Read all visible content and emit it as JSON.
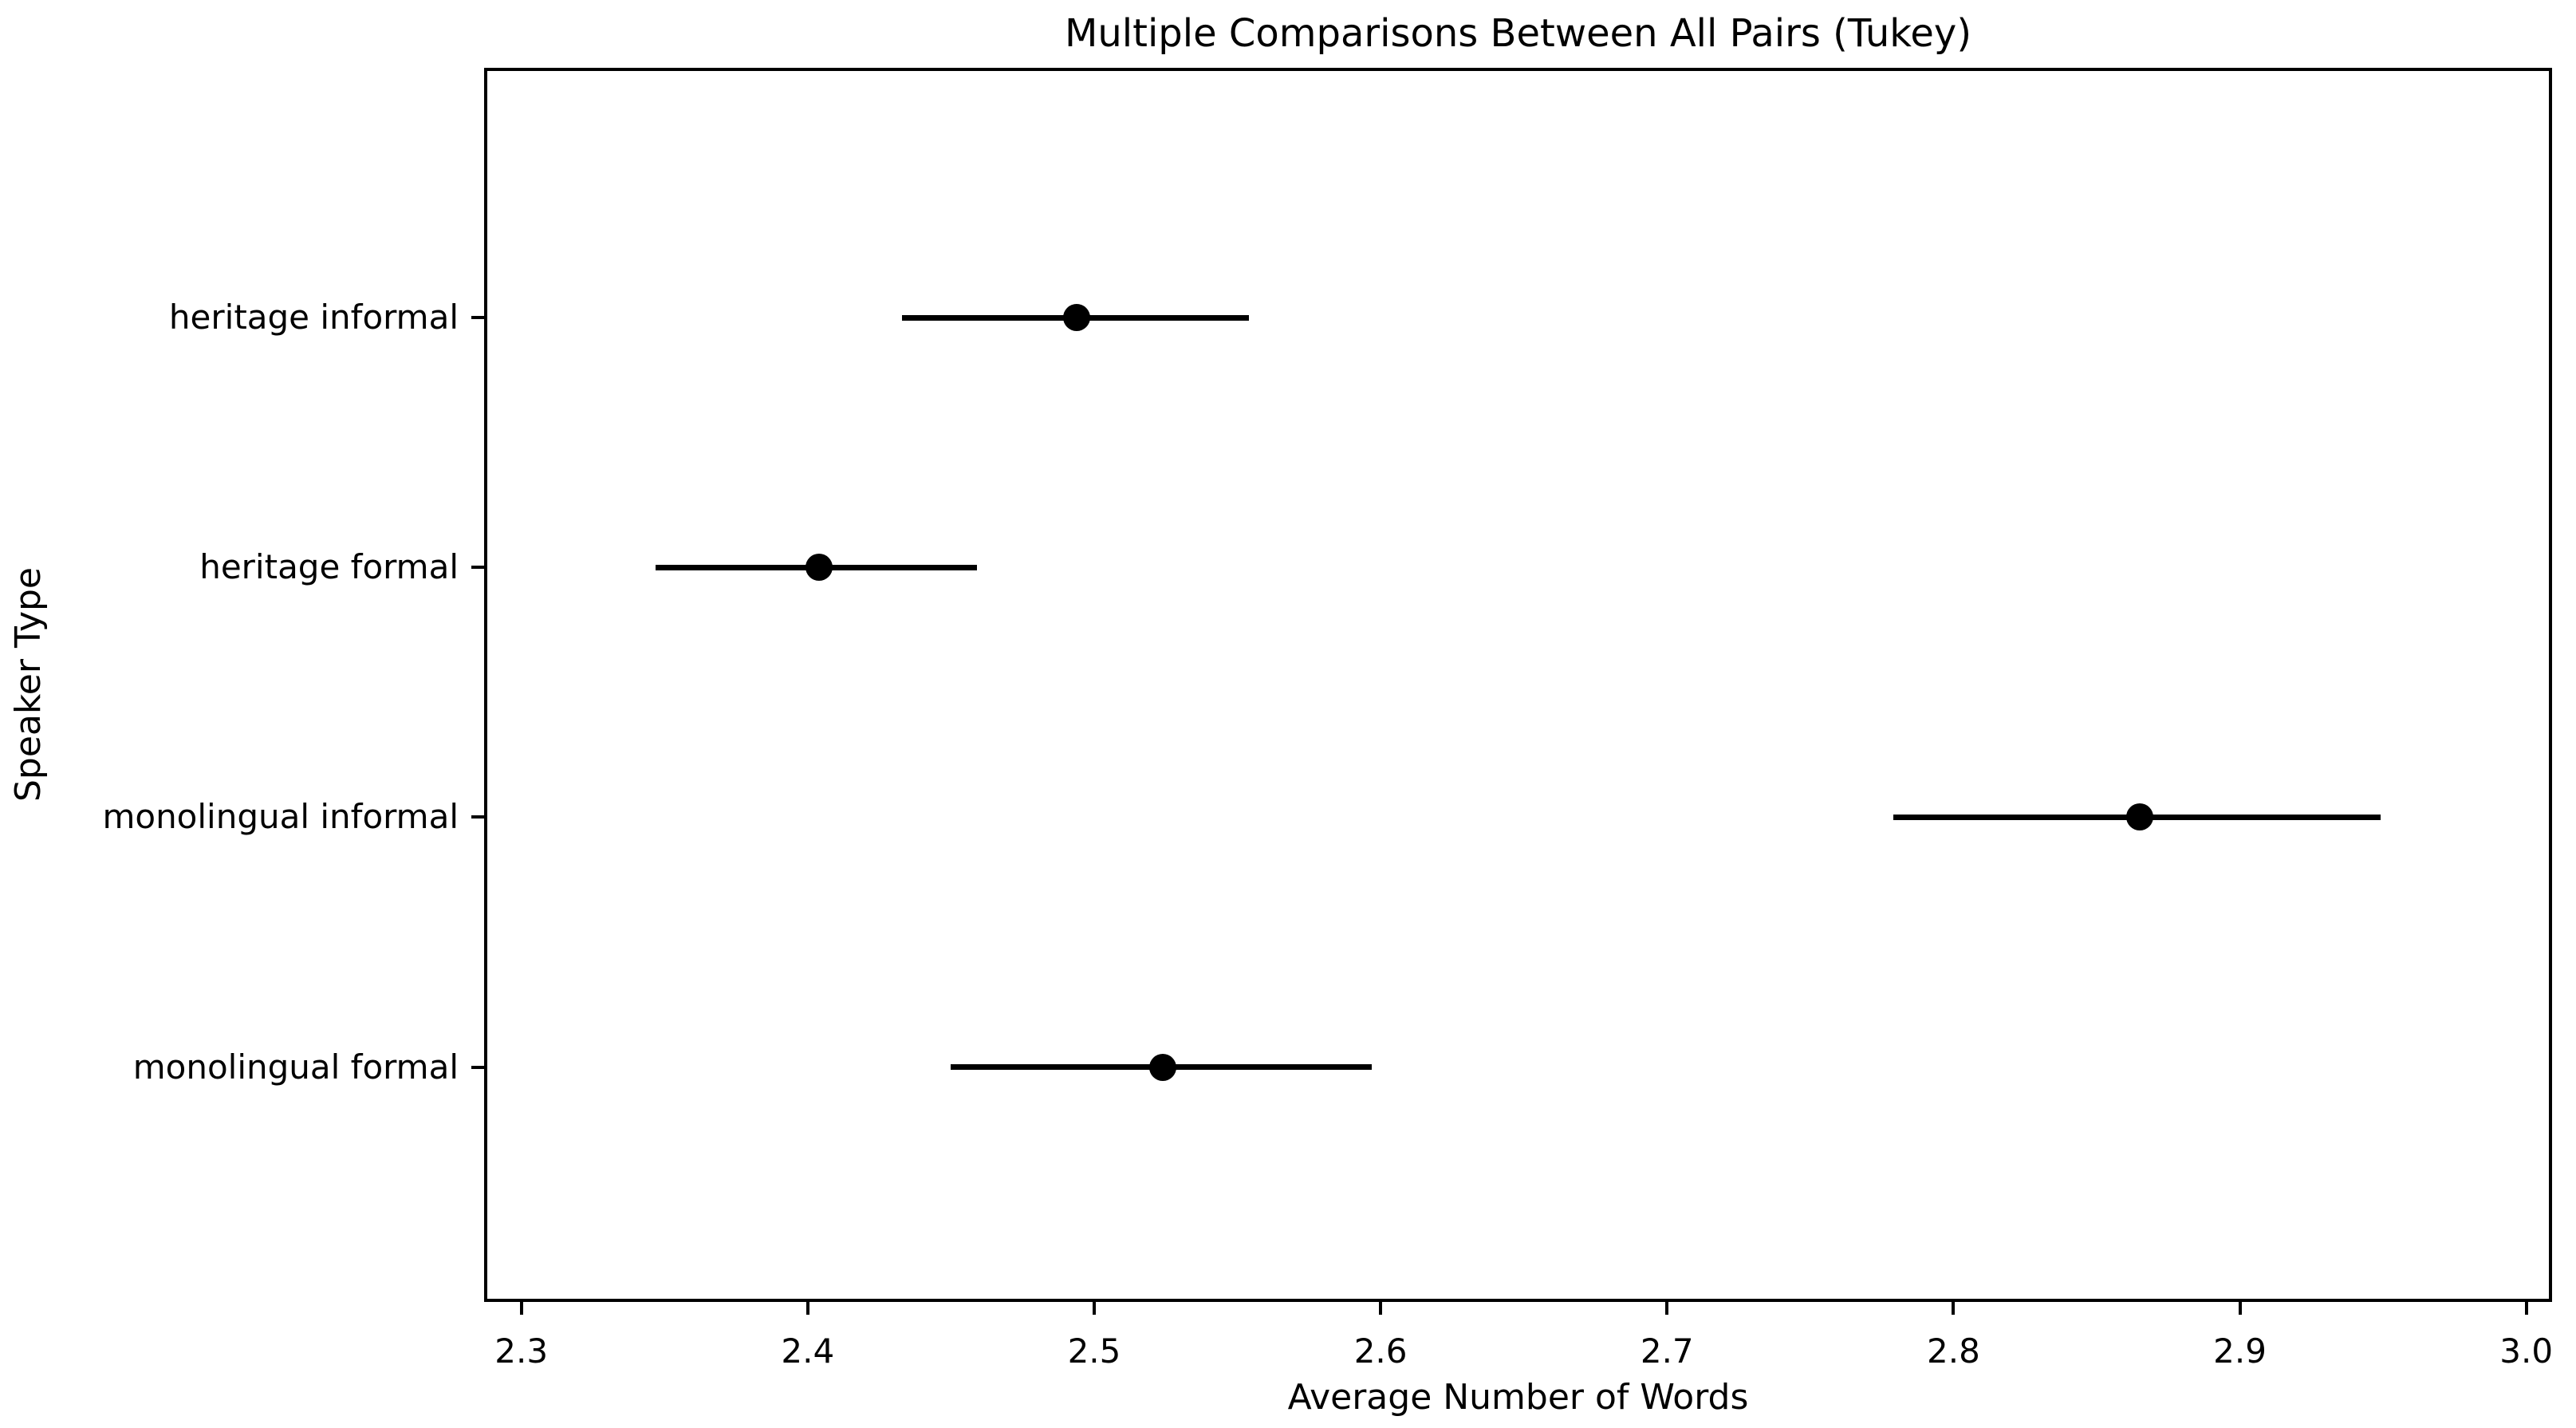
{
  "figure": {
    "background_color": "#ffffff",
    "foreground_color": "#000000"
  },
  "chart_data": {
    "type": "scatter",
    "subtype": "point-estimates-with-horizontal-error-bars",
    "title": "Multiple Comparisons Between All Pairs (Tukey)",
    "xlabel": "Average Number of Words",
    "ylabel": "Speaker Type",
    "categories": [
      "heritage informal",
      "heritage formal",
      "monolingual informal",
      "monolingual formal"
    ],
    "series": [
      {
        "name": "heritage informal",
        "y": 3,
        "mean": 2.494,
        "ci_low": 2.433,
        "ci_high": 2.554
      },
      {
        "name": "heritage formal",
        "y": 2,
        "mean": 2.404,
        "ci_low": 2.347,
        "ci_high": 2.459
      },
      {
        "name": "monolingual informal",
        "y": 1,
        "mean": 2.865,
        "ci_low": 2.779,
        "ci_high": 2.949
      },
      {
        "name": "monolingual formal",
        "y": 0,
        "mean": 2.524,
        "ci_low": 2.45,
        "ci_high": 2.597
      }
    ],
    "x_ticks": [
      {
        "value": 2.3,
        "label": "2.3"
      },
      {
        "value": 2.4,
        "label": "2.4"
      },
      {
        "value": 2.5,
        "label": "2.5"
      },
      {
        "value": 2.6,
        "label": "2.6"
      },
      {
        "value": 2.7,
        "label": "2.7"
      },
      {
        "value": 2.8,
        "label": "2.8"
      },
      {
        "value": 2.9,
        "label": "2.9"
      },
      {
        "value": 3.0,
        "label": "3.0"
      }
    ],
    "xlim": [
      2.287,
      3.009
    ],
    "ylim": [
      -0.94,
      4.0
    ],
    "grid": false,
    "legend": false,
    "marker_color": "#000000",
    "line_color": "#000000",
    "text_color": "#000000"
  }
}
